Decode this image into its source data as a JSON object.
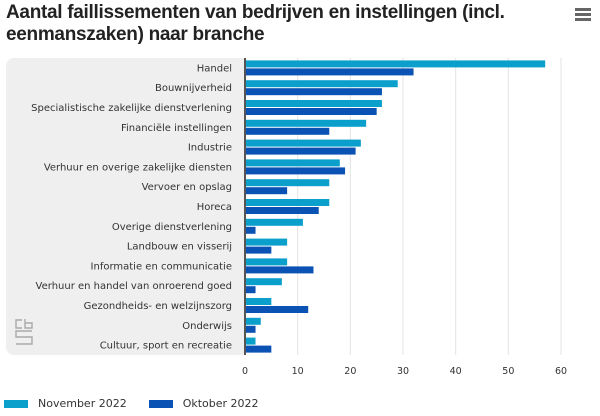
{
  "header": {
    "title": "Aantal faillissementen van bedrijven en instellingen (incl. eenmanszaken) naar branche",
    "menu_icon": "hamburger-menu-icon"
  },
  "logo": {
    "name": "cbs-logo-icon"
  },
  "chart_data": {
    "type": "bar",
    "orientation": "horizontal",
    "title": "Aantal faillissementen van bedrijven en instellingen (incl. eenmanszaken) naar branche",
    "xlabel": "",
    "ylabel": "",
    "categories": [
      "Handel",
      "Bouwnijverheid",
      "Specialistische zakelijke dienstverlening",
      "Financiële instellingen",
      "Industrie",
      "Verhuur en overige zakelijke diensten",
      "Vervoer en opslag",
      "Horeca",
      "Overige dienstverlening",
      "Landbouw en visserij",
      "Informatie en communicatie",
      "Verhuur en handel van onroerend goed",
      "Gezondheids- en welzijnszorg",
      "Onderwijs",
      "Cultuur, sport en recreatie"
    ],
    "series": [
      {
        "name": "November 2022",
        "color": "#0ba0cc",
        "values": [
          57,
          29,
          26,
          23,
          22,
          18,
          16,
          16,
          11,
          8,
          8,
          7,
          5,
          3,
          2
        ]
      },
      {
        "name": "Oktober 2022",
        "color": "#0a52b3",
        "values": [
          32,
          26,
          25,
          16,
          21,
          19,
          8,
          14,
          2,
          5,
          13,
          2,
          12,
          2,
          5
        ]
      }
    ],
    "xlim": [
      0,
      60
    ],
    "xticks": [
      "0",
      "10",
      "20",
      "30",
      "40",
      "50",
      "60"
    ],
    "grid": true,
    "legend_position": "bottom-left"
  }
}
